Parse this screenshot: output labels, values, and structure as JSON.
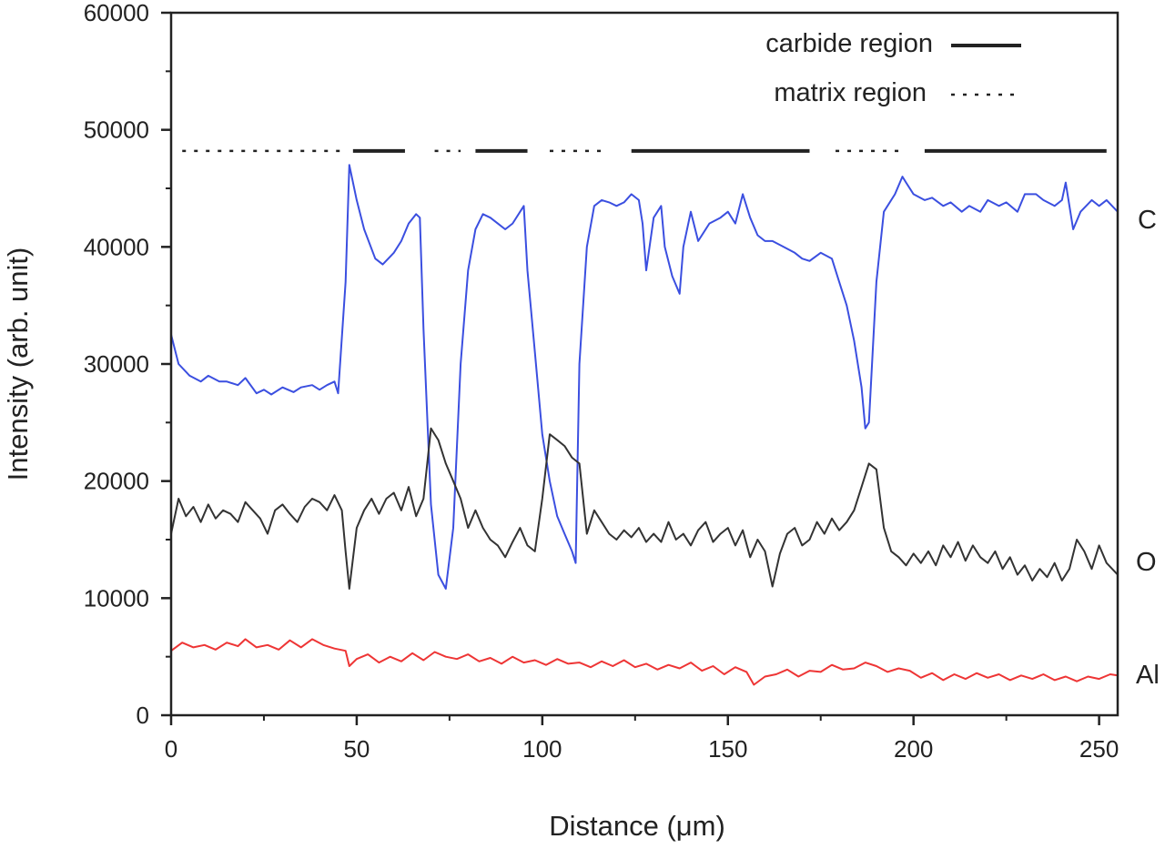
{
  "chart_data": {
    "type": "line",
    "xlabel": "Distance (μm)",
    "ylabel": "Intensity (arb. unit)",
    "xlim": [
      0,
      255
    ],
    "ylim": [
      0,
      60000
    ],
    "xticks": [
      0,
      50,
      100,
      150,
      200,
      250
    ],
    "yticks": [
      0,
      10000,
      20000,
      30000,
      40000,
      50000,
      60000
    ],
    "grid": false,
    "colors": {
      "C": "#3b4fe0",
      "O": "#333333",
      "Al": "#ee3535",
      "axis": "#222222"
    },
    "series": [
      {
        "name": "C",
        "x": [
          0,
          2,
          5,
          8,
          10,
          13,
          15,
          18,
          20,
          23,
          25,
          27,
          30,
          33,
          35,
          38,
          40,
          42,
          44,
          45,
          47,
          48,
          50,
          52,
          55,
          57,
          60,
          62,
          64,
          66,
          67,
          68,
          70,
          72,
          74,
          76,
          78,
          80,
          82,
          84,
          86,
          88,
          90,
          92,
          95,
          96,
          98,
          100,
          102,
          104,
          106,
          108,
          109,
          110,
          112,
          114,
          116,
          118,
          120,
          122,
          124,
          126,
          127,
          128,
          130,
          132,
          133,
          135,
          137,
          138,
          140,
          142,
          145,
          148,
          150,
          152,
          154,
          156,
          158,
          160,
          162,
          165,
          168,
          170,
          172,
          175,
          178,
          180,
          182,
          184,
          186,
          187,
          188,
          190,
          192,
          195,
          197,
          198,
          200,
          203,
          205,
          208,
          210,
          213,
          215,
          218,
          220,
          223,
          225,
          228,
          230,
          233,
          235,
          238,
          240,
          241,
          243,
          245,
          248,
          250,
          252,
          255
        ],
        "values": [
          32500,
          30000,
          29000,
          28500,
          29000,
          28500,
          28500,
          28200,
          28800,
          27500,
          27800,
          27400,
          28000,
          27600,
          28000,
          28200,
          27800,
          28200,
          28500,
          27500,
          37000,
          47000,
          44000,
          41500,
          39000,
          38500,
          39500,
          40500,
          42000,
          42800,
          42500,
          33000,
          18000,
          12000,
          10800,
          16000,
          30000,
          38000,
          41500,
          42800,
          42500,
          42000,
          41500,
          42000,
          43500,
          38000,
          31000,
          24000,
          20000,
          17000,
          15500,
          14000,
          13000,
          30000,
          40000,
          43500,
          44000,
          43800,
          43500,
          43800,
          44500,
          44000,
          42000,
          38000,
          42500,
          43500,
          40000,
          37500,
          36000,
          40000,
          43000,
          40500,
          42000,
          42500,
          43000,
          42000,
          44500,
          42500,
          41000,
          40500,
          40500,
          40000,
          39500,
          39000,
          38800,
          39500,
          39000,
          37000,
          35000,
          32000,
          28000,
          24500,
          25000,
          37000,
          43000,
          44500,
          46000,
          45500,
          44500,
          44000,
          44200,
          43500,
          43800,
          43000,
          43500,
          43000,
          44000,
          43500,
          43800,
          43000,
          44500,
          44500,
          44000,
          43500,
          44000,
          45500,
          41500,
          43000,
          44000,
          43500,
          44000,
          43000
        ]
      },
      {
        "name": "O",
        "x": [
          0,
          2,
          4,
          6,
          8,
          10,
          12,
          14,
          16,
          18,
          20,
          22,
          24,
          26,
          28,
          30,
          32,
          34,
          36,
          38,
          40,
          42,
          44,
          46,
          47,
          48,
          50,
          52,
          54,
          56,
          58,
          60,
          62,
          64,
          66,
          68,
          70,
          72,
          74,
          76,
          78,
          80,
          82,
          84,
          86,
          88,
          90,
          92,
          94,
          96,
          98,
          100,
          102,
          104,
          106,
          108,
          110,
          112,
          114,
          116,
          118,
          120,
          122,
          124,
          126,
          128,
          130,
          132,
          134,
          136,
          138,
          140,
          142,
          144,
          146,
          148,
          150,
          152,
          154,
          156,
          158,
          160,
          162,
          164,
          166,
          168,
          170,
          172,
          174,
          176,
          178,
          180,
          182,
          184,
          186,
          188,
          190,
          192,
          194,
          196,
          198,
          200,
          202,
          204,
          206,
          208,
          210,
          212,
          214,
          216,
          218,
          220,
          222,
          224,
          226,
          228,
          230,
          232,
          234,
          236,
          238,
          240,
          242,
          244,
          246,
          248,
          250,
          252,
          255
        ],
        "values": [
          15500,
          18500,
          17000,
          17800,
          16500,
          18000,
          16800,
          17500,
          17200,
          16500,
          18200,
          17500,
          16800,
          15500,
          17500,
          18000,
          17200,
          16500,
          17800,
          18500,
          18200,
          17500,
          18800,
          17500,
          14000,
          10800,
          16000,
          17500,
          18500,
          17200,
          18500,
          19000,
          17500,
          19500,
          17000,
          18500,
          24500,
          23500,
          21500,
          20000,
          18500,
          16000,
          17500,
          16000,
          15000,
          14500,
          13500,
          14800,
          16000,
          14500,
          14000,
          18500,
          24000,
          23500,
          23000,
          22000,
          21500,
          15500,
          17500,
          16500,
          15500,
          15000,
          15800,
          15200,
          16000,
          14800,
          15500,
          14800,
          16500,
          15000,
          15500,
          14500,
          15800,
          16500,
          14800,
          15500,
          16000,
          14500,
          15800,
          13500,
          15000,
          14000,
          11000,
          13800,
          15500,
          16000,
          14500,
          15000,
          16500,
          15500,
          16800,
          15800,
          16500,
          17500,
          19500,
          21500,
          21000,
          16000,
          14000,
          13500,
          12800,
          13800,
          13000,
          14000,
          12800,
          14500,
          13500,
          14800,
          13200,
          14500,
          13500,
          13000,
          14000,
          12500,
          13500,
          12000,
          12800,
          11500,
          12500,
          11800,
          13000,
          11500,
          12500,
          15000,
          14000,
          12500,
          14500,
          13000,
          12000
        ]
      },
      {
        "name": "Al",
        "x": [
          0,
          3,
          6,
          9,
          12,
          15,
          18,
          20,
          23,
          26,
          29,
          32,
          35,
          38,
          41,
          44,
          47,
          48,
          50,
          53,
          56,
          59,
          62,
          65,
          68,
          71,
          74,
          77,
          80,
          83,
          86,
          89,
          92,
          95,
          98,
          101,
          104,
          107,
          110,
          113,
          116,
          119,
          122,
          125,
          128,
          131,
          134,
          137,
          140,
          143,
          146,
          149,
          152,
          155,
          157,
          160,
          163,
          166,
          169,
          172,
          175,
          178,
          181,
          184,
          187,
          190,
          193,
          196,
          199,
          202,
          205,
          208,
          211,
          214,
          217,
          220,
          223,
          226,
          229,
          232,
          235,
          238,
          241,
          244,
          247,
          250,
          253,
          255
        ],
        "values": [
          5500,
          6200,
          5800,
          6000,
          5600,
          6200,
          5900,
          6500,
          5800,
          6000,
          5600,
          6400,
          5800,
          6500,
          6000,
          5700,
          5500,
          4200,
          4800,
          5200,
          4500,
          5000,
          4600,
          5300,
          4700,
          5400,
          5000,
          4800,
          5200,
          4600,
          4900,
          4400,
          5000,
          4500,
          4700,
          4300,
          4800,
          4400,
          4500,
          4100,
          4600,
          4200,
          4700,
          4100,
          4400,
          3900,
          4300,
          4000,
          4500,
          3800,
          4200,
          3500,
          4100,
          3700,
          2600,
          3300,
          3500,
          3900,
          3300,
          3800,
          3700,
          4300,
          3900,
          4000,
          4500,
          4200,
          3700,
          4000,
          3800,
          3200,
          3600,
          3000,
          3500,
          3100,
          3600,
          3200,
          3500,
          3000,
          3400,
          3100,
          3500,
          3000,
          3300,
          2900,
          3300,
          3100,
          3500,
          3400
        ]
      }
    ],
    "series_labels": {
      "C": "C",
      "O": "O",
      "Al": "Al"
    },
    "legend": {
      "position": "top-right",
      "entries": [
        {
          "label": "carbide region",
          "style": "solid"
        },
        {
          "label": "matrix region",
          "style": "dotted"
        }
      ]
    },
    "region_marker_y": 48200,
    "region_segments": [
      {
        "style": "dotted",
        "x_start": 3,
        "x_end": 46
      },
      {
        "style": "solid",
        "x_start": 49,
        "x_end": 63
      },
      {
        "style": "dotted",
        "x_start": 71,
        "x_end": 78
      },
      {
        "style": "solid",
        "x_start": 82,
        "x_end": 96
      },
      {
        "style": "dotted",
        "x_start": 102,
        "x_end": 116
      },
      {
        "style": "solid",
        "x_start": 124,
        "x_end": 172
      },
      {
        "style": "dotted",
        "x_start": 179,
        "x_end": 196
      },
      {
        "style": "solid",
        "x_start": 203,
        "x_end": 252
      }
    ]
  }
}
